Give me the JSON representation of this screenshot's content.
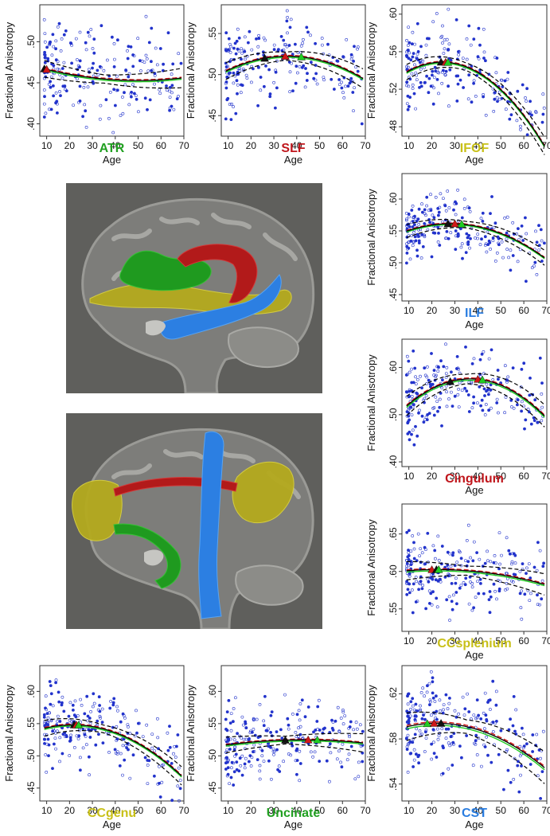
{
  "colors": {
    "point": "#2233cc",
    "fit_black": "#000000",
    "fit_red": "#d01818",
    "fit_green": "#22cc22",
    "title_green": "#22a022",
    "title_red": "#c0161c",
    "title_yellow": "#c8c018",
    "title_blue": "#2a7de0",
    "brain_bg": "#5f5f5c"
  },
  "chart_data": [
    {
      "id": "ATR",
      "type": "scatter",
      "title": "ATR",
      "title_color": "#22a022",
      "xlabel": "Age",
      "ylabel": "Fractional Anisotropy",
      "xlim": [
        7,
        70
      ],
      "ylim": [
        0.385,
        0.545
      ],
      "xticks": [
        "10",
        "20",
        "30",
        "40",
        "50",
        "60",
        "70"
      ],
      "yticks": [
        {
          "v": 0.4,
          "t": ".40"
        },
        {
          "v": 0.45,
          "t": ".45"
        },
        {
          "v": 0.5,
          "t": ".50"
        }
      ],
      "fit": {
        "a": 0.474,
        "b": -0.00085,
        "c": 8.5e-06
      },
      "peaks": [
        {
          "x": 9,
          "color": "black"
        },
        {
          "x": 10,
          "color": "red"
        }
      ],
      "spread": 0.03,
      "band": 0.005,
      "n": 210
    },
    {
      "id": "SLF",
      "type": "scatter",
      "title": "SLF",
      "title_color": "#c0161c",
      "xlabel": "Age",
      "ylabel": "Fractional Anisotropy",
      "xlim": [
        7,
        70
      ],
      "ylim": [
        0.425,
        0.585
      ],
      "xticks": [
        "10",
        "20",
        "30",
        "40",
        "50",
        "60",
        "70"
      ],
      "yticks": [
        {
          "v": 0.45,
          "t": ".45"
        },
        {
          "v": 0.5,
          "t": ".50"
        },
        {
          "v": 0.55,
          "t": ".55"
        }
      ],
      "fit": {
        "a": 0.49,
        "b": 0.0018,
        "c": -2.5e-05
      },
      "peaks": [
        {
          "x": 26,
          "color": "black"
        },
        {
          "x": 35,
          "color": "red"
        },
        {
          "x": 42,
          "color": "green"
        }
      ],
      "spread": 0.025,
      "band": 0.005,
      "n": 210
    },
    {
      "id": "IFOF",
      "type": "scatter",
      "title": "IFOF",
      "title_color": "#c8c018",
      "xlabel": "Age",
      "ylabel": "Fractional Anisotropy",
      "xlim": [
        7,
        70
      ],
      "ylim": [
        0.47,
        0.61
      ],
      "xticks": [
        "10",
        "20",
        "30",
        "40",
        "50",
        "60",
        "70"
      ],
      "yticks": [
        {
          "v": 0.48,
          "t": ".48"
        },
        {
          "v": 0.52,
          "t": ".52"
        },
        {
          "v": 0.56,
          "t": ".56"
        },
        {
          "v": 0.6,
          "t": ".60"
        }
      ],
      "fit": {
        "a": 0.522,
        "b": 0.0022,
        "c": -4.5e-05
      },
      "peaks": [
        {
          "x": 24,
          "color": "black"
        },
        {
          "x": 26,
          "color": "red"
        },
        {
          "x": 27,
          "color": "green"
        }
      ],
      "spread": 0.022,
      "band": 0.004,
      "n": 220
    },
    {
      "id": "ILF",
      "type": "scatter",
      "title": "ILF",
      "title_color": "#2a7de0",
      "xlabel": "Age",
      "ylabel": "Fractional Anisotropy",
      "xlim": [
        7,
        70
      ],
      "ylim": [
        0.44,
        0.64
      ],
      "xticks": [
        "10",
        "20",
        "30",
        "40",
        "50",
        "60",
        "70"
      ],
      "yticks": [
        {
          "v": 0.45,
          "t": ".45"
        },
        {
          "v": 0.5,
          "t": ".50"
        },
        {
          "v": 0.55,
          "t": ".55"
        },
        {
          "v": 0.6,
          "t": ".60"
        }
      ],
      "fit": {
        "a": 0.536,
        "b": 0.0018,
        "c": -3.2e-05
      },
      "peaks": [
        {
          "x": 27,
          "color": "black"
        },
        {
          "x": 30,
          "color": "red"
        },
        {
          "x": 33,
          "color": "green"
        }
      ],
      "spread": 0.025,
      "band": 0.005,
      "n": 230
    },
    {
      "id": "Cingulum",
      "type": "scatter",
      "title": "Cingulum",
      "title_color": "#c0161c",
      "xlabel": "Age",
      "ylabel": "Fractional Anisotropy",
      "xlim": [
        7,
        70
      ],
      "ylim": [
        0.39,
        0.66
      ],
      "xticks": [
        "10",
        "20",
        "30",
        "40",
        "50",
        "60",
        "70"
      ],
      "yticks": [
        {
          "v": 0.4,
          "t": ".40"
        },
        {
          "v": 0.5,
          "t": ".50"
        },
        {
          "v": 0.6,
          "t": ".60"
        }
      ],
      "fit": {
        "a": 0.475,
        "b": 0.0055,
        "c": -7.5e-05
      },
      "peaks": [
        {
          "x": 28,
          "color": "black"
        },
        {
          "x": 40,
          "color": "red"
        },
        {
          "x": 42,
          "color": "green"
        }
      ],
      "spread": 0.04,
      "band": 0.01,
      "n": 230
    },
    {
      "id": "CCsplenium",
      "type": "scatter",
      "title": "CCsplenium",
      "title_color": "#c8c018",
      "xlabel": "Age",
      "ylabel": "Fractional Anisotropy",
      "xlim": [
        7,
        70
      ],
      "ylim": [
        0.52,
        0.69
      ],
      "xticks": [
        "10",
        "20",
        "30",
        "40",
        "50",
        "60",
        "70"
      ],
      "yticks": [
        {
          "v": 0.55,
          "t": ".55"
        },
        {
          "v": 0.6,
          "t": ".60"
        },
        {
          "v": 0.65,
          "t": ".65"
        }
      ],
      "fit": {
        "a": 0.598,
        "b": 0.0004,
        "c": -9e-06
      },
      "peaks": [
        {
          "x": 20,
          "color": "red"
        },
        {
          "x": 22,
          "color": "black"
        },
        {
          "x": 23,
          "color": "green"
        }
      ],
      "spread": 0.025,
      "band": 0.006,
      "n": 230
    },
    {
      "id": "CCgenu",
      "type": "scatter",
      "title": "CCgenu",
      "title_color": "#c8c018",
      "xlabel": "Age",
      "ylabel": "Fractional Anisotropy",
      "xlim": [
        7,
        70
      ],
      "ylim": [
        0.43,
        0.64
      ],
      "xticks": [
        "10",
        "20",
        "30",
        "40",
        "50",
        "60",
        "70"
      ],
      "yticks": [
        {
          "v": 0.45,
          "t": ".45"
        },
        {
          "v": 0.5,
          "t": ".50"
        },
        {
          "v": 0.55,
          "t": ".55"
        },
        {
          "v": 0.6,
          "t": ".60"
        }
      ],
      "fit": {
        "a": 0.532,
        "b": 0.0015,
        "c": -3.5e-05
      },
      "peaks": [
        {
          "x": 22,
          "color": "black"
        },
        {
          "x": 23,
          "color": "red"
        },
        {
          "x": 24,
          "color": "green"
        }
      ],
      "spread": 0.03,
      "band": 0.006,
      "n": 230
    },
    {
      "id": "Uncinate",
      "type": "scatter",
      "title": "Uncinate",
      "title_color": "#22a022",
      "xlabel": "Age",
      "ylabel": "Fractional Anisotropy",
      "xlim": [
        7,
        70
      ],
      "ylim": [
        0.43,
        0.64
      ],
      "xticks": [
        "10",
        "20",
        "30",
        "40",
        "50",
        "60",
        "70"
      ],
      "yticks": [
        {
          "v": 0.45,
          "t": ".45"
        },
        {
          "v": 0.5,
          "t": ".50"
        },
        {
          "v": 0.55,
          "t": ".55"
        },
        {
          "v": 0.6,
          "t": ".60"
        }
      ],
      "fit": {
        "a": 0.512,
        "b": 0.0006,
        "c": -7e-06
      },
      "peaks": [
        {
          "x": 35,
          "color": "black"
        },
        {
          "x": 45,
          "color": "red"
        },
        {
          "x": 49,
          "color": "green"
        }
      ],
      "spread": 0.03,
      "band": 0.006,
      "n": 230
    },
    {
      "id": "CST",
      "type": "scatter",
      "title": "CST",
      "title_color": "#2a7de0",
      "xlabel": "Age",
      "ylabel": "Fractional Anisotropy",
      "xlim": [
        7,
        70
      ],
      "ylim": [
        0.525,
        0.645
      ],
      "xticks": [
        "10",
        "20",
        "30",
        "40",
        "50",
        "60",
        "70"
      ],
      "yticks": [
        {
          "v": 0.54,
          "t": ".54"
        },
        {
          "v": 0.58,
          "t": ".58"
        },
        {
          "v": 0.62,
          "t": ".62"
        }
      ],
      "fit": {
        "a": 0.585,
        "b": 0.0008,
        "c": -1.8e-05
      },
      "peaks": [
        {
          "x": 18,
          "color": "green"
        },
        {
          "x": 21,
          "color": "red"
        },
        {
          "x": 24,
          "color": "black"
        }
      ],
      "spread": 0.02,
      "band": 0.006,
      "n": 230
    }
  ]
}
